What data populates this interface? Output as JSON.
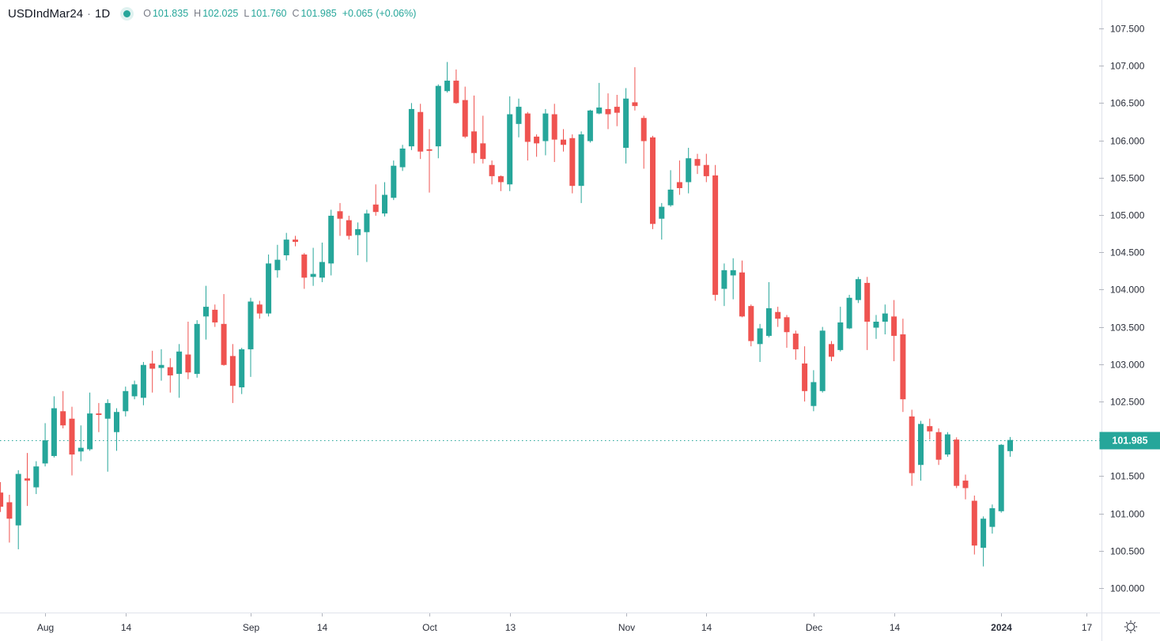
{
  "header": {
    "symbol": "USDIndMar24",
    "separator": "·",
    "interval": "1D",
    "status_dot_color": "#26a69a",
    "ohlc_pairs": [
      {
        "label": "O",
        "value": "101.835"
      },
      {
        "label": "H",
        "value": "102.025"
      },
      {
        "label": "L",
        "value": "101.760"
      },
      {
        "label": "C",
        "value": "101.985"
      }
    ],
    "change": "+0.065",
    "change_pct": "(+0.06%)"
  },
  "icons": {
    "settings_gear": "gear-icon",
    "status_dot": "status-dot-icon"
  },
  "chart_data": {
    "type": "candlestick",
    "title": "USDIndMar24 · 1D",
    "symbol": "USDIndMar24",
    "interval": "1D",
    "up_color": "#26a69a",
    "down_color": "#ef5350",
    "price_line_color": "#26a69a",
    "last_price": 101.985,
    "last_price_label": "101.985",
    "grid": "off",
    "legend_position": "top-left",
    "y_axis": {
      "min": 99.672,
      "max": 107.881,
      "tick_step": 0.5,
      "ticks": [
        {
          "price": 107.5,
          "label": "107.500"
        },
        {
          "price": 107.0,
          "label": "107.000"
        },
        {
          "price": 106.5,
          "label": "106.500"
        },
        {
          "price": 106.0,
          "label": "106.000"
        },
        {
          "price": 105.5,
          "label": "105.500"
        },
        {
          "price": 105.0,
          "label": "105.000"
        },
        {
          "price": 104.5,
          "label": "104.500"
        },
        {
          "price": 104.0,
          "label": "104.000"
        },
        {
          "price": 103.5,
          "label": "103.500"
        },
        {
          "price": 103.0,
          "label": "103.000"
        },
        {
          "price": 102.5,
          "label": "102.500"
        },
        {
          "price": 102.0,
          "label": "102.000"
        },
        {
          "price": 101.5,
          "label": "101.500"
        },
        {
          "price": 101.0,
          "label": "101.000"
        },
        {
          "price": 100.5,
          "label": "100.500"
        },
        {
          "price": 100.0,
          "label": "100.000"
        }
      ]
    },
    "x_ticks": [
      {
        "index": 5,
        "label": "Aug",
        "bold": false
      },
      {
        "index": 14,
        "label": "14",
        "bold": false
      },
      {
        "index": 28,
        "label": "Sep",
        "bold": false
      },
      {
        "index": 36,
        "label": "14",
        "bold": false
      },
      {
        "index": 48,
        "label": "Oct",
        "bold": false
      },
      {
        "index": 57,
        "label": "13",
        "bold": false
      },
      {
        "index": 70,
        "label": "Nov",
        "bold": false
      },
      {
        "index": 79,
        "label": "14",
        "bold": false
      },
      {
        "index": 91,
        "label": "Dec",
        "bold": false
      },
      {
        "index": 100,
        "label": "14",
        "bold": false
      },
      {
        "index": 112,
        "label": "2024",
        "bold": true
      },
      {
        "index": 121.5,
        "label": "17",
        "bold": false
      }
    ],
    "candles": [
      [
        101.28,
        101.42,
        101.02,
        101.09
      ],
      [
        101.15,
        101.25,
        100.61,
        100.93
      ],
      [
        100.84,
        101.58,
        100.52,
        101.53
      ],
      [
        101.47,
        101.81,
        101.1,
        101.44
      ],
      [
        101.35,
        101.7,
        101.26,
        101.63
      ],
      [
        101.67,
        102.21,
        101.63,
        101.98
      ],
      [
        101.77,
        102.57,
        101.75,
        102.41
      ],
      [
        102.37,
        102.64,
        102.14,
        102.18
      ],
      [
        102.27,
        102.43,
        101.51,
        101.79
      ],
      [
        101.83,
        102.18,
        101.7,
        101.88
      ],
      [
        101.86,
        102.62,
        101.84,
        102.34
      ],
      [
        102.34,
        102.48,
        102.09,
        102.32
      ],
      [
        102.27,
        102.53,
        101.56,
        102.48
      ],
      [
        102.09,
        102.41,
        101.84,
        102.36
      ],
      [
        102.37,
        102.7,
        102.3,
        102.64
      ],
      [
        102.57,
        102.78,
        102.53,
        102.73
      ],
      [
        102.55,
        103.03,
        102.45,
        102.99
      ],
      [
        103.01,
        103.18,
        102.62,
        102.94
      ],
      [
        102.95,
        103.2,
        102.78,
        102.99
      ],
      [
        102.96,
        103.08,
        102.62,
        102.85
      ],
      [
        102.87,
        103.27,
        102.55,
        103.17
      ],
      [
        103.13,
        103.57,
        102.8,
        102.89
      ],
      [
        102.87,
        103.59,
        102.82,
        103.54
      ],
      [
        103.64,
        104.05,
        103.33,
        103.77
      ],
      [
        103.73,
        103.8,
        103.5,
        103.56
      ],
      [
        103.54,
        103.94,
        102.98,
        102.99
      ],
      [
        103.11,
        103.27,
        102.48,
        102.71
      ],
      [
        102.69,
        103.22,
        102.6,
        103.2
      ],
      [
        103.2,
        103.89,
        102.83,
        103.84
      ],
      [
        103.8,
        103.85,
        103.61,
        103.68
      ],
      [
        103.68,
        104.47,
        103.64,
        104.35
      ],
      [
        104.26,
        104.6,
        104.16,
        104.4
      ],
      [
        104.46,
        104.76,
        104.39,
        104.67
      ],
      [
        104.67,
        104.72,
        104.58,
        104.64
      ],
      [
        104.47,
        104.49,
        104.01,
        104.16
      ],
      [
        104.17,
        104.56,
        104.05,
        104.21
      ],
      [
        104.16,
        104.63,
        104.1,
        104.37
      ],
      [
        104.35,
        105.07,
        104.19,
        104.99
      ],
      [
        105.05,
        105.16,
        104.72,
        104.95
      ],
      [
        104.93,
        104.99,
        104.67,
        104.72
      ],
      [
        104.73,
        104.9,
        104.46,
        104.81
      ],
      [
        104.77,
        105.07,
        104.37,
        105.02
      ],
      [
        105.14,
        105.41,
        104.99,
        105.04
      ],
      [
        105.02,
        105.44,
        104.98,
        105.27
      ],
      [
        105.23,
        105.73,
        105.2,
        105.66
      ],
      [
        105.64,
        105.94,
        105.59,
        105.89
      ],
      [
        105.92,
        106.5,
        105.87,
        106.42
      ],
      [
        106.38,
        106.49,
        105.75,
        105.85
      ],
      [
        105.88,
        106.15,
        105.3,
        105.86
      ],
      [
        105.92,
        106.75,
        105.76,
        106.73
      ],
      [
        106.66,
        107.05,
        106.64,
        106.8
      ],
      [
        106.8,
        106.95,
        106.49,
        106.5
      ],
      [
        106.54,
        106.72,
        106.03,
        106.05
      ],
      [
        106.12,
        106.6,
        105.69,
        105.83
      ],
      [
        105.96,
        106.33,
        105.69,
        105.75
      ],
      [
        105.67,
        105.73,
        105.41,
        105.52
      ],
      [
        105.52,
        105.53,
        105.32,
        105.44
      ],
      [
        105.41,
        106.59,
        105.32,
        106.35
      ],
      [
        106.22,
        106.56,
        106.04,
        106.45
      ],
      [
        106.36,
        106.38,
        105.73,
        105.98
      ],
      [
        106.05,
        106.08,
        105.78,
        105.96
      ],
      [
        105.99,
        106.42,
        105.8,
        106.36
      ],
      [
        106.35,
        106.49,
        105.71,
        106.01
      ],
      [
        106.01,
        106.15,
        105.85,
        105.94
      ],
      [
        106.03,
        106.08,
        105.29,
        105.39
      ],
      [
        105.39,
        106.12,
        105.16,
        106.08
      ],
      [
        105.99,
        106.41,
        105.97,
        106.4
      ],
      [
        106.36,
        106.77,
        106.35,
        106.44
      ],
      [
        106.42,
        106.63,
        106.15,
        106.35
      ],
      [
        106.45,
        106.61,
        106.19,
        106.37
      ],
      [
        105.9,
        106.7,
        105.69,
        106.56
      ],
      [
        106.51,
        106.98,
        106.4,
        106.46
      ],
      [
        106.3,
        106.33,
        105.62,
        105.99
      ],
      [
        106.04,
        106.06,
        104.81,
        104.88
      ],
      [
        104.95,
        105.16,
        104.67,
        105.11
      ],
      [
        105.13,
        105.6,
        105.11,
        105.34
      ],
      [
        105.44,
        105.73,
        105.27,
        105.36
      ],
      [
        105.44,
        105.9,
        105.29,
        105.76
      ],
      [
        105.75,
        105.82,
        105.55,
        105.66
      ],
      [
        105.67,
        105.82,
        105.44,
        105.52
      ],
      [
        105.53,
        105.67,
        103.85,
        103.93
      ],
      [
        104.01,
        104.35,
        103.78,
        104.26
      ],
      [
        104.19,
        104.42,
        103.87,
        104.26
      ],
      [
        104.23,
        104.39,
        103.63,
        103.64
      ],
      [
        103.78,
        103.8,
        103.24,
        103.31
      ],
      [
        103.27,
        103.54,
        103.03,
        103.48
      ],
      [
        103.38,
        104.1,
        103.36,
        103.75
      ],
      [
        103.7,
        103.77,
        103.5,
        103.61
      ],
      [
        103.63,
        103.66,
        103.22,
        103.43
      ],
      [
        103.41,
        103.45,
        103.06,
        103.2
      ],
      [
        103.01,
        103.24,
        102.5,
        102.64
      ],
      [
        102.44,
        102.92,
        102.37,
        102.76
      ],
      [
        102.64,
        103.5,
        102.62,
        103.45
      ],
      [
        103.27,
        103.31,
        103.04,
        103.1
      ],
      [
        103.19,
        103.77,
        103.17,
        103.56
      ],
      [
        103.48,
        103.93,
        103.47,
        103.89
      ],
      [
        103.86,
        104.17,
        103.82,
        104.14
      ],
      [
        104.09,
        104.17,
        103.19,
        103.57
      ],
      [
        103.49,
        103.66,
        103.34,
        103.57
      ],
      [
        103.57,
        103.8,
        103.4,
        103.68
      ],
      [
        103.64,
        103.86,
        103.04,
        103.38
      ],
      [
        103.4,
        103.61,
        102.36,
        102.53
      ],
      [
        102.3,
        102.39,
        101.37,
        101.54
      ],
      [
        101.65,
        102.24,
        101.44,
        102.2
      ],
      [
        102.17,
        102.27,
        101.99,
        102.1
      ],
      [
        102.09,
        102.14,
        101.65,
        101.72
      ],
      [
        101.79,
        102.09,
        101.76,
        102.06
      ],
      [
        101.99,
        102.02,
        101.34,
        101.37
      ],
      [
        101.44,
        101.52,
        101.19,
        101.34
      ],
      [
        101.17,
        101.24,
        100.45,
        100.57
      ],
      [
        100.54,
        100.96,
        100.29,
        100.93
      ],
      [
        100.82,
        101.12,
        100.73,
        101.07
      ],
      [
        101.03,
        101.93,
        101.01,
        101.92
      ],
      [
        101.835,
        102.025,
        101.76,
        101.985
      ]
    ]
  }
}
